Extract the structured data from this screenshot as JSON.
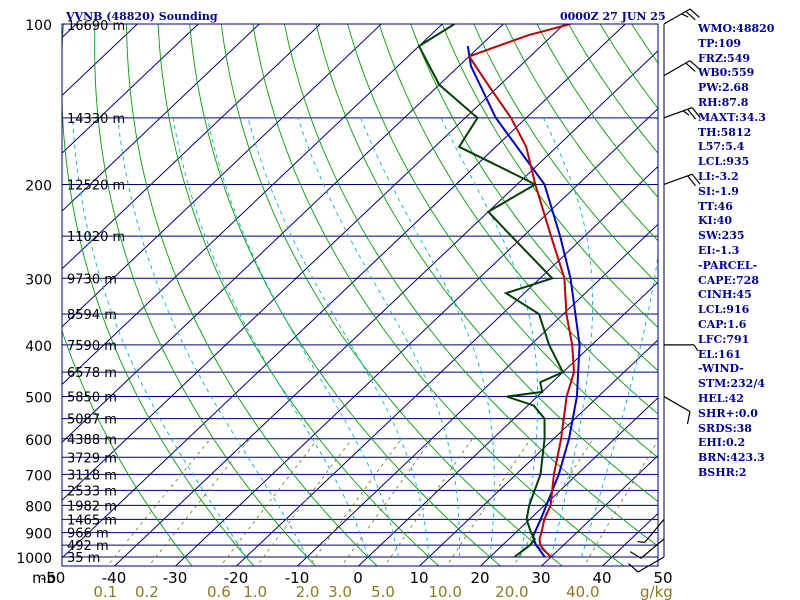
{
  "header": {
    "station": "VVNB (48820) Sounding",
    "time": "0000Z 27 JUN 25"
  },
  "pressure_ticks": [
    "100",
    "200",
    "300",
    "400",
    "500",
    "600",
    "700",
    "800",
    "900",
    "1000"
  ],
  "height_labels": [
    {
      "p": 100,
      "label": "16690 m"
    },
    {
      "p": 150,
      "label": "14330 m"
    },
    {
      "p": 200,
      "label": "12520 m"
    },
    {
      "p": 250,
      "label": "11020 m"
    },
    {
      "p": 300,
      "label": "9730 m"
    },
    {
      "p": 350,
      "label": "8594 m"
    },
    {
      "p": 400,
      "label": "7590 m"
    },
    {
      "p": 450,
      "label": "6578 m"
    },
    {
      "p": 500,
      "label": "5850 m"
    },
    {
      "p": 550,
      "label": "5087 m"
    },
    {
      "p": 600,
      "label": "4388 m"
    },
    {
      "p": 650,
      "label": "3729 m"
    },
    {
      "p": 700,
      "label": "3118 m"
    },
    {
      "p": 750,
      "label": "2533 m"
    },
    {
      "p": 800,
      "label": "1982 m"
    },
    {
      "p": 850,
      "label": "1465 m"
    },
    {
      "p": 900,
      "label": "966 m"
    },
    {
      "p": 950,
      "label": "492 m"
    },
    {
      "p": 1000,
      "label": "35 m"
    }
  ],
  "temp_ticks": [
    "-50",
    "-40",
    "-30",
    "-20",
    "-10",
    "0",
    "10",
    "20",
    "30",
    "40",
    "50"
  ],
  "mb_label": "mb",
  "mixing_ratio": {
    "labels": [
      "0.1",
      "0.2",
      "0.6",
      "1.0",
      "2.0",
      "3.0",
      "5.0",
      "10.0",
      "20.0",
      "40.0"
    ],
    "unit": "g/kg"
  },
  "indices": [
    "WMO:48820",
    "TP:109",
    "FRZ:549",
    "WB0:559",
    "PW:2.68",
    "RH:87.8",
    "MAXT:34.3",
    "TH:5812",
    "L57:5.4",
    "LCL:935",
    "LI:-3.2",
    "SI:-1.9",
    "TT:46",
    "KI:40",
    "SW:235",
    "EI:-1.3",
    "-PARCEL-",
    "CAPE:728",
    "CINH:45",
    "LCL:916",
    "CAP:1.6",
    "LFC:791",
    "EL:161",
    "-WIND-",
    "STM:232/4",
    "HEL:42",
    "SHR+:0.0",
    "SRDS:38",
    "EHI:0.2",
    "BRN:423.3",
    "BSHR:2"
  ],
  "colors": {
    "isobar": "#000080",
    "isotherm": "#000080",
    "dry_adiabat": "#00a000",
    "moist_adiabat": "#00b4d0",
    "mixing_ratio": "#8a7a1e",
    "temperature": "#c00000",
    "dewpoint": "#004000",
    "parcel": "#0000d0",
    "wind": "#000000"
  },
  "chart_data": {
    "type": "skew-t",
    "title": "VVNB (48820) Sounding",
    "time": "0000Z 27 JUN 25",
    "pressure_range_mb": [
      100,
      1000
    ],
    "xlim_temperature_c": [
      -50,
      50
    ],
    "pressure_scale": "log",
    "temperature_profile": [
      {
        "p": 1000,
        "t": 30.0
      },
      {
        "p": 975,
        "t": 28.0
      },
      {
        "p": 950,
        "t": 26.2
      },
      {
        "p": 925,
        "t": 25.0
      },
      {
        "p": 900,
        "t": 24.2
      },
      {
        "p": 850,
        "t": 22.4
      },
      {
        "p": 800,
        "t": 21.0
      },
      {
        "p": 700,
        "t": 16.2
      },
      {
        "p": 600,
        "t": 11.2
      },
      {
        "p": 500,
        "t": 4.8
      },
      {
        "p": 450,
        "t": 1.8
      },
      {
        "p": 400,
        "t": -3.2
      },
      {
        "p": 350,
        "t": -9.5
      },
      {
        "p": 300,
        "t": -16.0
      },
      {
        "p": 250,
        "t": -25.5
      },
      {
        "p": 200,
        "t": -37.0
      },
      {
        "p": 170,
        "t": -45.0
      },
      {
        "p": 150,
        "t": -52.5
      },
      {
        "p": 130,
        "t": -62.0
      },
      {
        "p": 115,
        "t": -70.0
      },
      {
        "p": 105,
        "t": -64.0
      },
      {
        "p": 100,
        "t": -59.0
      }
    ],
    "dewpoint_profile": [
      {
        "p": 1000,
        "td": 24.0
      },
      {
        "p": 950,
        "td": 24.5
      },
      {
        "p": 925,
        "td": 24.2
      },
      {
        "p": 900,
        "td": 22.5
      },
      {
        "p": 850,
        "td": 19.5
      },
      {
        "p": 800,
        "td": 17.5
      },
      {
        "p": 700,
        "td": 14.0
      },
      {
        "p": 600,
        "td": 8.5
      },
      {
        "p": 550,
        "td": 5.0
      },
      {
        "p": 520,
        "td": 1.0
      },
      {
        "p": 500,
        "td": -5.0
      },
      {
        "p": 490,
        "td": 0.0
      },
      {
        "p": 470,
        "td": -2.0
      },
      {
        "p": 450,
        "td": 0.0
      },
      {
        "p": 400,
        "td": -7.0
      },
      {
        "p": 350,
        "td": -14.0
      },
      {
        "p": 320,
        "td": -23.0
      },
      {
        "p": 300,
        "td": -18.0
      },
      {
        "p": 250,
        "td": -32.0
      },
      {
        "p": 225,
        "td": -40.0
      },
      {
        "p": 200,
        "td": -37.0
      },
      {
        "p": 170,
        "td": -56.0
      },
      {
        "p": 150,
        "td": -58.0
      },
      {
        "p": 130,
        "td": -70.0
      },
      {
        "p": 110,
        "td": -80.0
      },
      {
        "p": 100,
        "td": -78.0
      }
    ],
    "parcel_profile": [
      {
        "p": 1000,
        "t": 29.0
      },
      {
        "p": 950,
        "t": 25.5
      },
      {
        "p": 916,
        "t": 23.5
      },
      {
        "p": 850,
        "t": 21.8
      },
      {
        "p": 700,
        "t": 17.0
      },
      {
        "p": 600,
        "t": 12.5
      },
      {
        "p": 500,
        "t": 6.5
      },
      {
        "p": 400,
        "t": -2.0
      },
      {
        "p": 300,
        "t": -15.0
      },
      {
        "p": 250,
        "t": -24.0
      },
      {
        "p": 200,
        "t": -35.5
      },
      {
        "p": 150,
        "t": -55.0
      },
      {
        "p": 120,
        "t": -68.0
      },
      {
        "p": 110,
        "t": -72.0
      }
    ],
    "wind_barbs": [
      {
        "p": 1000,
        "dir": 240,
        "spd": 10
      },
      {
        "p": 925,
        "dir": 230,
        "spd": 10
      },
      {
        "p": 850,
        "dir": 220,
        "spd": 5
      },
      {
        "p": 500,
        "dir": 120,
        "spd": 10
      },
      {
        "p": 400,
        "dir": 90,
        "spd": 5
      },
      {
        "p": 200,
        "dir": 70,
        "spd": 20
      },
      {
        "p": 150,
        "dir": 70,
        "spd": 25
      },
      {
        "p": 125,
        "dir": 60,
        "spd": 20
      },
      {
        "p": 100,
        "dir": 60,
        "spd": 25
      }
    ]
  }
}
